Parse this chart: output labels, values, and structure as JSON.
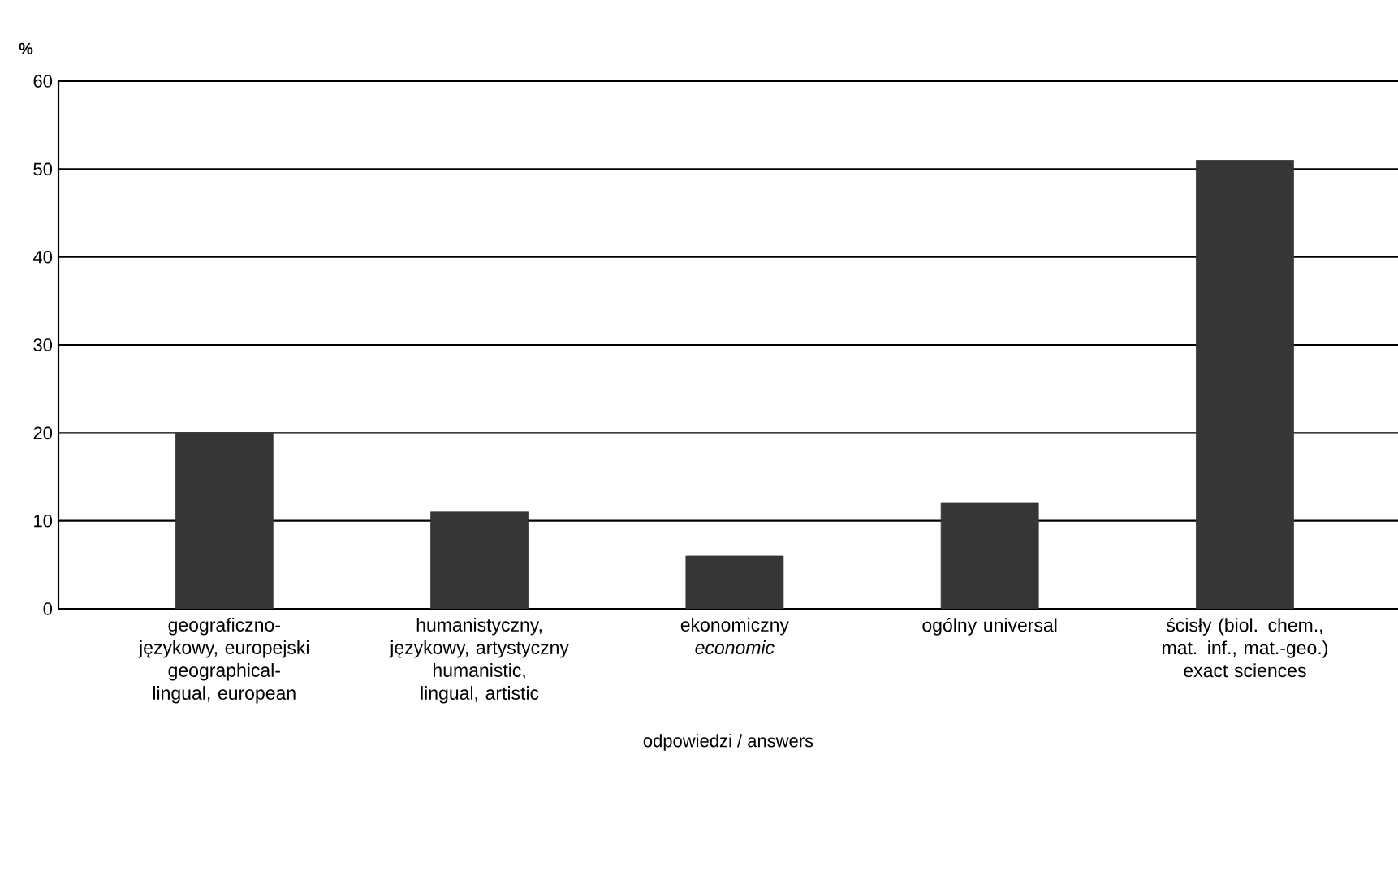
{
  "chart_data": {
    "type": "bar",
    "ylabel": "%",
    "xlabel": "odpowiedzi / answers",
    "categories": [
      "geograficzno-językowy, europejski geographical-lingual, european",
      "humanistyczny, językowy, artystyczny humanistic, lingual, artistic",
      "ekonomiczny *economic*",
      "ogólny universal",
      "ścisły (biol. chem., mat. inf., mat.-geo.) exact sciences"
    ],
    "values": [
      20,
      11,
      6,
      12,
      51
    ],
    "color": "#363636",
    "ylim": [
      0,
      60
    ],
    "yticks": [
      0,
      10,
      20,
      30,
      40,
      50,
      60
    ],
    "grid": "y"
  }
}
